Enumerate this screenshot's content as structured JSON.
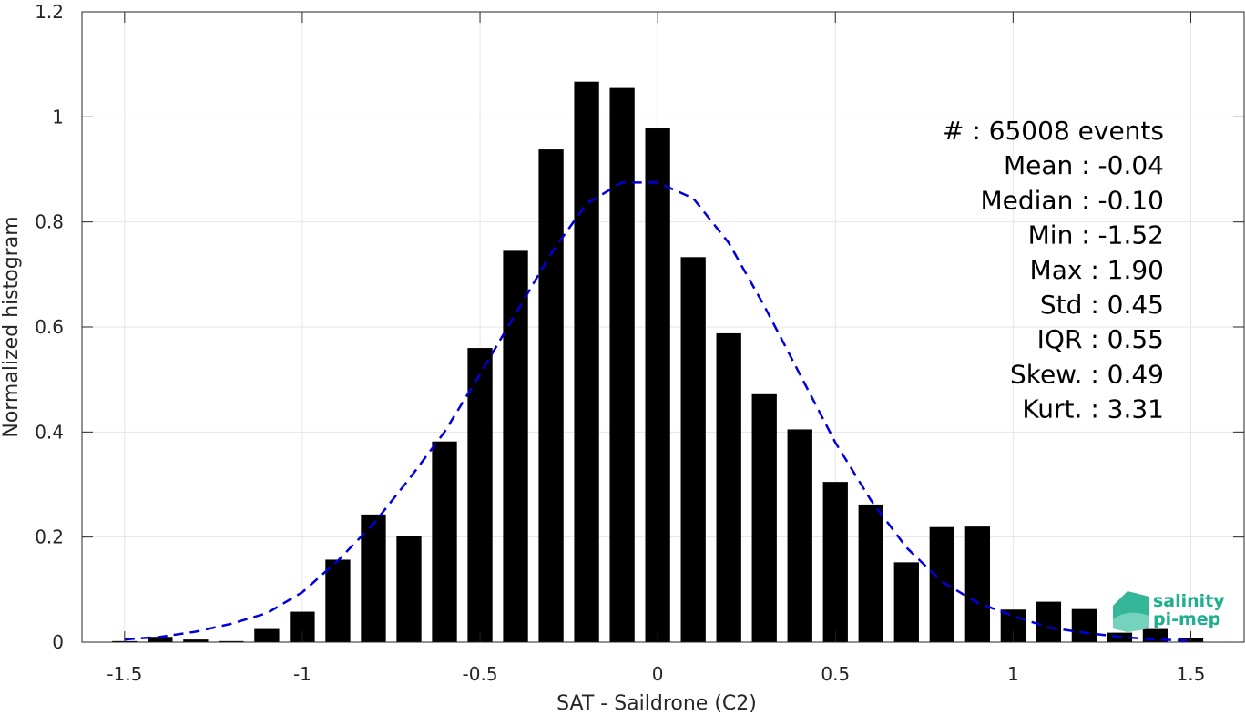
{
  "chart_data": {
    "type": "bar",
    "xlabel": "SAT - Saildrone (C2)",
    "ylabel": "Normalized histogram",
    "xlim": [
      -1.62,
      1.65
    ],
    "ylim": [
      0,
      1.2
    ],
    "xticks": [
      -1.5,
      -1,
      -0.5,
      0,
      0.5,
      1,
      1.5
    ],
    "xtick_labels": [
      "-1.5",
      "-1",
      "-0.5",
      "0",
      "0.5",
      "1",
      "1.5"
    ],
    "yticks": [
      0,
      0.2,
      0.4,
      0.6,
      0.8,
      1,
      1.2
    ],
    "ytick_labels": [
      "0",
      "0.2",
      "0.4",
      "0.6",
      "0.8",
      "1",
      "1.2"
    ],
    "grid": true,
    "bin_width": 0.1,
    "bars": {
      "color": "#000000",
      "x": [
        -1.5,
        -1.4,
        -1.3,
        -1.2,
        -1.1,
        -1.0,
        -0.9,
        -0.8,
        -0.7,
        -0.6,
        -0.5,
        -0.4,
        -0.3,
        -0.2,
        -0.1,
        0.0,
        0.1,
        0.2,
        0.3,
        0.4,
        0.5,
        0.6,
        0.7,
        0.8,
        0.9,
        1.0,
        1.1,
        1.2,
        1.3,
        1.4,
        1.5
      ],
      "values": [
        0.002,
        0.01,
        0.005,
        0.002,
        0.025,
        0.058,
        0.157,
        0.243,
        0.202,
        0.382,
        0.56,
        0.745,
        0.938,
        1.067,
        1.055,
        0.978,
        0.733,
        0.588,
        0.472,
        0.405,
        0.305,
        0.262,
        0.152,
        0.219,
        0.22,
        0.062,
        0.077,
        0.063,
        0.018,
        0.025,
        0.008
      ]
    },
    "fit": {
      "color": "#0000dd",
      "style": "dashed",
      "x": [
        -1.5,
        -1.4,
        -1.3,
        -1.2,
        -1.1,
        -1.0,
        -0.9,
        -0.8,
        -0.7,
        -0.6,
        -0.5,
        -0.4,
        -0.3,
        -0.2,
        -0.1,
        0.0,
        0.1,
        0.2,
        0.3,
        0.4,
        0.5,
        0.6,
        0.7,
        0.8,
        0.9,
        1.0,
        1.1,
        1.2,
        1.3,
        1.4,
        1.5
      ],
      "y": [
        0.005,
        0.01,
        0.02,
        0.035,
        0.055,
        0.095,
        0.155,
        0.225,
        0.31,
        0.4,
        0.51,
        0.625,
        0.74,
        0.835,
        0.875,
        0.875,
        0.845,
        0.76,
        0.64,
        0.51,
        0.38,
        0.27,
        0.18,
        0.115,
        0.075,
        0.05,
        0.028,
        0.018,
        0.01,
        0.005,
        0.003
      ]
    },
    "stats": [
      "#  : 65008 events",
      "Mean : -0.04",
      "Median : -0.10",
      "Min : -1.52",
      "Max : 1.90",
      "Std : 0.45",
      "IQR : 0.55",
      "Skew. : 0.49",
      "Kurt. : 3.31"
    ],
    "logo": {
      "line1": "salinity",
      "line2": "pi-mep",
      "color": "#1fae8e"
    }
  }
}
